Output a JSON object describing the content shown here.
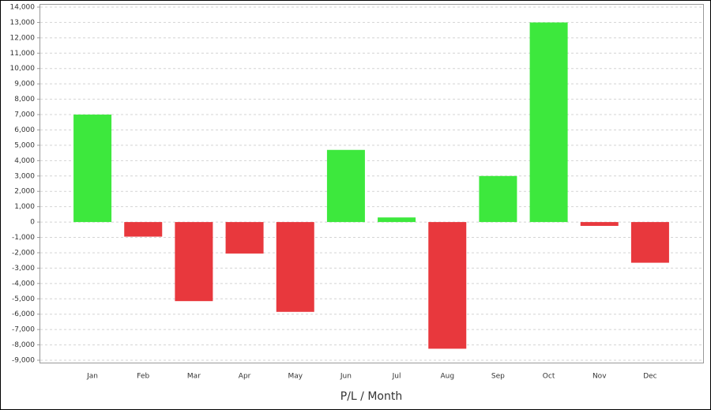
{
  "chart_data": {
    "type": "bar",
    "x_label": "P/L / Month",
    "categories": [
      "Jan",
      "Feb",
      "Mar",
      "Apr",
      "May",
      "Jun",
      "Jul",
      "Aug",
      "Sep",
      "Oct",
      "Nov",
      "Dec"
    ],
    "values": [
      7000,
      -950,
      -5150,
      -2050,
      -5850,
      4700,
      300,
      -8250,
      3000,
      13000,
      -250,
      -2650
    ],
    "positive_color": "#3de83d",
    "negative_color": "#e8383d",
    "ylim": [
      -9000,
      14000
    ],
    "yticks": [
      {
        "value": -9000,
        "label": "-9,000"
      },
      {
        "value": -8000,
        "label": "-8,000"
      },
      {
        "value": -7000,
        "label": "-7,000"
      },
      {
        "value": -6000,
        "label": "-6,000"
      },
      {
        "value": -5000,
        "label": "-5,000"
      },
      {
        "value": -4000,
        "label": "-4,000"
      },
      {
        "value": -3000,
        "label": "-3,000"
      },
      {
        "value": -2000,
        "label": "-2,000"
      },
      {
        "value": -1000,
        "label": "-1,000"
      },
      0,
      {
        "value": 1000,
        "label": "1,000"
      },
      {
        "value": 2000,
        "label": "2,000"
      },
      {
        "value": 3000,
        "label": "3,000"
      },
      {
        "value": 4000,
        "label": "4,000"
      },
      {
        "value": 5000,
        "label": "5,000"
      },
      {
        "value": 6000,
        "label": "6,000"
      },
      {
        "value": 7000,
        "label": "7,000"
      },
      {
        "value": 8000,
        "label": "8,000"
      },
      {
        "value": 9000,
        "label": "9,000"
      },
      {
        "value": 10000,
        "label": "10,000"
      },
      {
        "value": 11000,
        "label": "11,000"
      },
      {
        "value": 12000,
        "label": "12,000"
      },
      {
        "value": 13000,
        "label": "13,000"
      },
      {
        "value": 14000,
        "label": "14,000"
      }
    ],
    "grid": true
  }
}
